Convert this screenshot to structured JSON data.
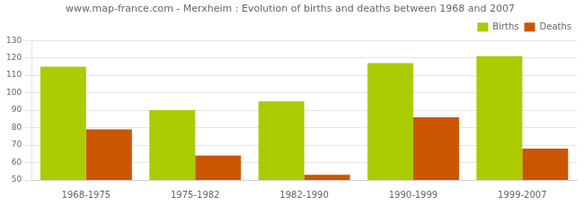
{
  "chart_data": {
    "type": "bar",
    "title": "www.map-france.com - Merxheim : Evolution of births and deaths between 1968 and 2007",
    "categories": [
      "1968-1975",
      "1975-1982",
      "1982-1990",
      "1990-1999",
      "1999-2007"
    ],
    "series": [
      {
        "name": "Births",
        "color": "#aacc00",
        "values": [
          115,
          90,
          95,
          117,
          121
        ]
      },
      {
        "name": "Deaths",
        "color": "#cc5500",
        "values": [
          79,
          64,
          53,
          86,
          68
        ]
      }
    ],
    "ylim": [
      50,
      130
    ],
    "yticks": [
      50,
      60,
      70,
      80,
      90,
      100,
      110,
      120,
      130
    ],
    "grid": true,
    "legend": "upper right"
  }
}
